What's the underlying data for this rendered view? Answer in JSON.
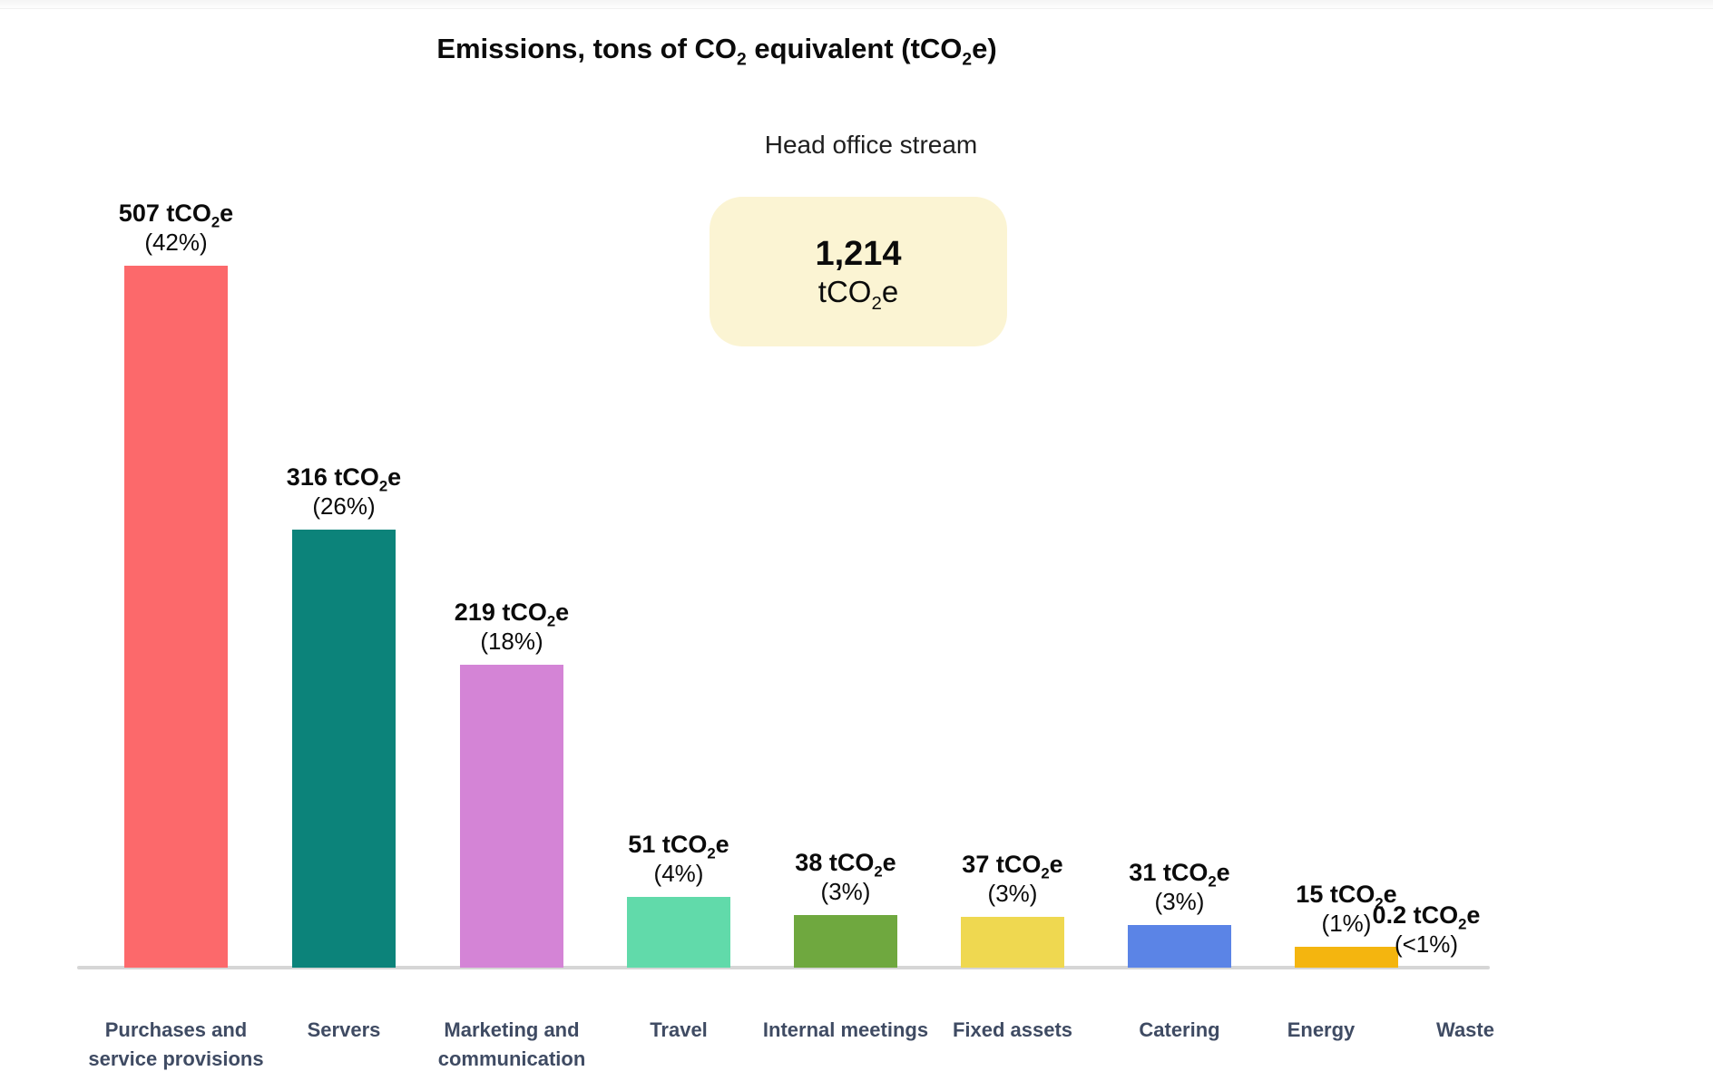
{
  "page": {
    "title_parts": [
      {
        "t": "Emissions, tons of CO"
      },
      {
        "t": "2",
        "sub": true
      },
      {
        "t": " equivalent (tCO"
      },
      {
        "t": "2",
        "sub": true
      },
      {
        "t": "e)"
      }
    ],
    "subtitle": "Head office stream",
    "summary_box": {
      "value": "1,214",
      "unit_parts": [
        {
          "t": "tCO"
        },
        {
          "t": "2",
          "sub": true
        },
        {
          "t": "e"
        }
      ],
      "bg_color": "#FBF4D3"
    }
  },
  "chart_data": {
    "type": "bar",
    "title": "Emissions, tons of CO2 equivalent (tCO2e)",
    "subtitle": "Head office stream",
    "total": {
      "value": 1214,
      "unit": "tCO2e",
      "label": "1,214 tCO2e"
    },
    "unit": "tCO2e",
    "categories": [
      "Purchases and service provisions",
      "Servers",
      "Marketing and communication",
      "Travel",
      "Internal meetings",
      "Fixed assets",
      "Catering",
      "Energy",
      "Waste"
    ],
    "values": [
      507,
      316,
      219,
      51,
      38,
      37,
      31,
      15,
      0.2
    ],
    "value_labels": [
      "507",
      "316",
      "219",
      "51",
      "38",
      "37",
      "31",
      "15",
      "0.2"
    ],
    "pct_labels": [
      "(42%)",
      "(26%)",
      "(18%)",
      "(4%)",
      "(3%)",
      "(3%)",
      "(3%)",
      "(1%)",
      "(<1%)"
    ],
    "colors": [
      "#FC696B",
      "#0C837A",
      "#D484D6",
      "#61DAAA",
      "#6FA83F",
      "#EFD850",
      "#5B84E6",
      "#F4B50F",
      null
    ],
    "xlabel": "",
    "ylabel": "",
    "ylim": [
      0,
      530
    ],
    "grid": false,
    "legend": false,
    "axis_line_color": "#D6D6D6",
    "category_label_color": "#3F4B63",
    "unit_parts": [
      {
        "t": " tCO"
      },
      {
        "t": "2",
        "sub": true
      },
      {
        "t": "e"
      }
    ]
  }
}
